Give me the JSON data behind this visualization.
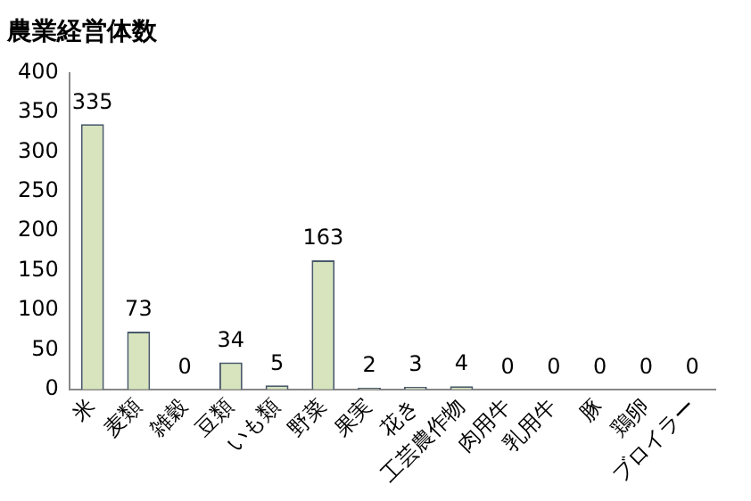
{
  "chart_data": {
    "type": "bar",
    "title": "農業経営体数",
    "categories": [
      "米",
      "麦類",
      "雑穀",
      "豆類",
      "いも類",
      "野菜",
      "果実",
      "花き",
      "工芸農作物",
      "肉用牛",
      "乳用牛",
      "豚",
      "鶏卵",
      "ブロイラー"
    ],
    "values": [
      335,
      73,
      0,
      34,
      5,
      163,
      2,
      3,
      4,
      0,
      0,
      0,
      0,
      0
    ],
    "color": "#d7e4bd",
    "ylim": [
      0,
      400
    ],
    "yticks": [
      0,
      50,
      100,
      150,
      200,
      250,
      300,
      350,
      400
    ],
    "grid": false,
    "legend": false,
    "data_labels": true
  }
}
